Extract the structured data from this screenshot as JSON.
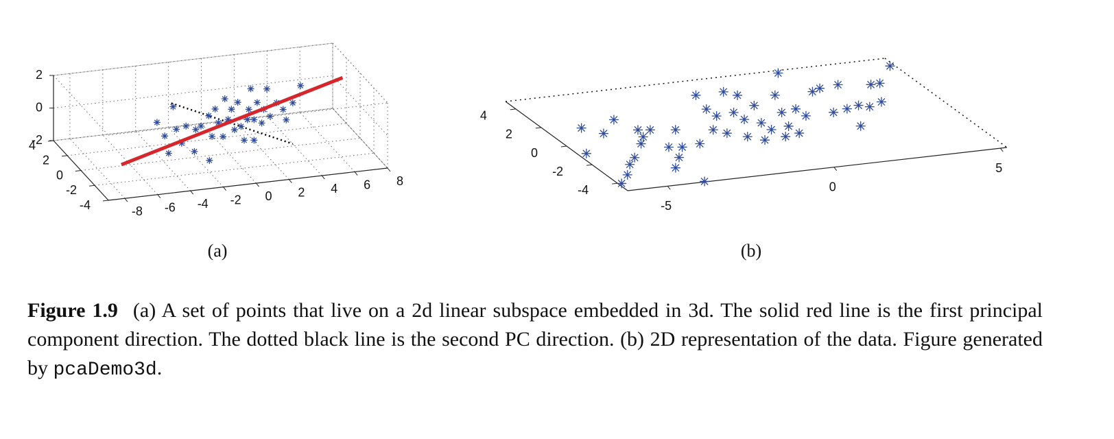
{
  "chart_data": [
    {
      "type": "scatter3d",
      "label": "(a)",
      "color": "#2f4b9c",
      "grid": true,
      "x": [
        -4.37,
        -3.39,
        -3.9,
        -3.66,
        -3.19,
        -2.87,
        -2.6,
        -2.09,
        -2.01,
        -1.69,
        -2.01,
        -1.22,
        -0.83,
        -0.63,
        -0.35,
        -0.04,
        0.16,
        0.35,
        0.55,
        0.75,
        0.94,
        1.22,
        1.34,
        1.54,
        1.73,
        2.01,
        2.32,
        2.52,
        2.91,
        3.31,
        3.5,
        3.9,
        4.37,
        1.54,
        -0.24,
        -1.02,
        1.14,
        2.13
      ],
      "y": [
        0,
        0,
        0,
        0,
        0,
        0,
        0,
        0,
        0,
        0,
        -2,
        0,
        0,
        0,
        0,
        0,
        0,
        0,
        0,
        0,
        0,
        0,
        0,
        0,
        0,
        0,
        0,
        0,
        0,
        0,
        0,
        0,
        0,
        0,
        0,
        0,
        0,
        0
      ],
      "z": [
        0.41,
        1.26,
        -0.48,
        -1.57,
        -0.15,
        -1.04,
        -0.02,
        -1.64,
        -0.3,
        -0.13,
        -1.28,
        0.45,
        0.82,
        -0.05,
        -0.93,
        0.09,
        0.69,
        -0.59,
        1.07,
        -0.43,
        -1.3,
        0.56,
        1.81,
        -0.11,
        0.92,
        -0.37,
        1.69,
        -0.02,
        0.77,
        0.31,
        -0.35,
        0.65,
        1.65,
        -1.37,
        1.38,
        -0.84,
        -0.06,
        0.45
      ],
      "lines": [
        {
          "color": "#000000",
          "style": "dotted",
          "x": [
            -3.5,
            3.9
          ],
          "y": [
            0,
            0
          ],
          "z": [
            1.49,
            -1.87
          ]
        },
        {
          "color": "#d7262b",
          "style": "solid",
          "x": [
            -6.54,
            6.93
          ],
          "y": [
            0,
            0
          ],
          "z": [
            -1.93,
            1.84
          ]
        }
      ],
      "xlim": [
        -9,
        8
      ],
      "ylim": [
        -4,
        4
      ],
      "zlim": [
        -2,
        2
      ],
      "xticks": [
        -8,
        -6,
        -4,
        -2,
        0,
        2,
        4,
        6,
        8
      ],
      "yticks": [
        -4,
        -2,
        0,
        2,
        4
      ],
      "zticks": [
        -2,
        0,
        2
      ]
    },
    {
      "type": "scatter3d",
      "label": "(b)",
      "color": "#2f4b9c",
      "grid": false,
      "x": [
        -5.17,
        -5.95,
        -4.79,
        -4.03,
        -6.1,
        -5.64,
        -5.21,
        -4.84,
        -3.77,
        -4.18,
        -3.88,
        -3.45,
        -3.58,
        -2.79,
        -3.68,
        -3.23,
        -4.14,
        -2.65,
        -3.87,
        -1.03,
        -1.25,
        -1.81,
        -1.23,
        -0.19,
        -1.57,
        -0.66,
        0.05,
        -0.63,
        -1.16,
        0.12,
        -0.31,
        -0.83,
        -0.29,
        1.03,
        1.9,
        0.59,
        -0.17,
        0.28,
        1.08,
        0.31,
        1.1,
        2.13,
        2.44,
        1.94,
        3.04,
        2.42,
        2.16,
        3.9,
        3.56,
        5.06,
        2.84,
        3.08,
        4.18
      ],
      "y": [
        1.53,
        -0.9,
        0.78,
        1.96,
        -4.06,
        -3.32,
        -2.38,
        -1.79,
        0.75,
        -0.57,
        0.05,
        0.62,
        -1.18,
        0.36,
        -2.25,
        -1.32,
        -3.18,
        -1.19,
        -4.75,
        3.36,
        1.96,
        -0.04,
        1.21,
        3.39,
        -0.5,
        1.36,
        2.92,
        0.6,
        -1.04,
        1.79,
        0.1,
        -1.54,
        -0.64,
        2.53,
        4.56,
        0.85,
        -1.44,
        -0.5,
        1.03,
        -1.26,
        0.28,
        2.46,
        2.7,
        0.31,
        2.84,
        0.5,
        -1.25,
        2.5,
        0.78,
        4.03,
        0.7,
        0.45,
        2.53
      ],
      "xlim": [
        -6.2,
        5.2
      ],
      "ylim": [
        -4.8,
        4.8
      ],
      "xticks": [
        -5,
        0,
        5
      ],
      "yticks": [
        -4,
        -2,
        0,
        2,
        4
      ]
    }
  ],
  "caption": {
    "label": "Figure 1.9",
    "text": "(a) A set of points that live on a 2d linear subspace embedded in 3d. The solid red line is the first principal component direction. The dotted black line is the second PC direction. (b) 2D representation of the data. Figure generated by",
    "code": "pcaDemo3d",
    "end": "."
  }
}
